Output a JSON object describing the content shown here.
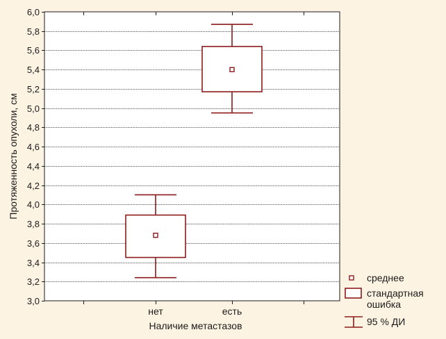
{
  "chart_data": {
    "type": "box",
    "ylabel": "Протяженность опухоли, см",
    "xlabel": "Наличие метастазов",
    "ylim": [
      3.0,
      6.0
    ],
    "y_ticks": [
      "3,0",
      "3,2",
      "3,4",
      "3,6",
      "3,8",
      "4,0",
      "4,2",
      "4,4",
      "4,6",
      "4,8",
      "5,0",
      "5,2",
      "5,4",
      "5,6",
      "5,8",
      "6,0"
    ],
    "grid": true,
    "categories": [
      "нет",
      "есть"
    ],
    "series": [
      {
        "category": "нет",
        "mean": 3.68,
        "se_low": 3.45,
        "se_high": 3.89,
        "ci_low": 3.24,
        "ci_high": 4.1
      },
      {
        "category": "есть",
        "mean": 5.4,
        "se_low": 5.17,
        "se_high": 5.64,
        "ci_low": 4.95,
        "ci_high": 5.87
      }
    ],
    "legend": {
      "placement": "bottom-right",
      "items": [
        {
          "symbol": "mean-marker",
          "label": "среднее"
        },
        {
          "symbol": "box",
          "label_lines": [
            "стандартная",
            "ошибка"
          ]
        },
        {
          "symbol": "whisker",
          "label": "95 % ДИ"
        }
      ]
    },
    "colors": {
      "series": "#8b1a1a",
      "axis": "#1a1a1a",
      "grid": "#1a1a1a",
      "background": "#fdf3e2",
      "plot_background": "#ffffff"
    }
  }
}
